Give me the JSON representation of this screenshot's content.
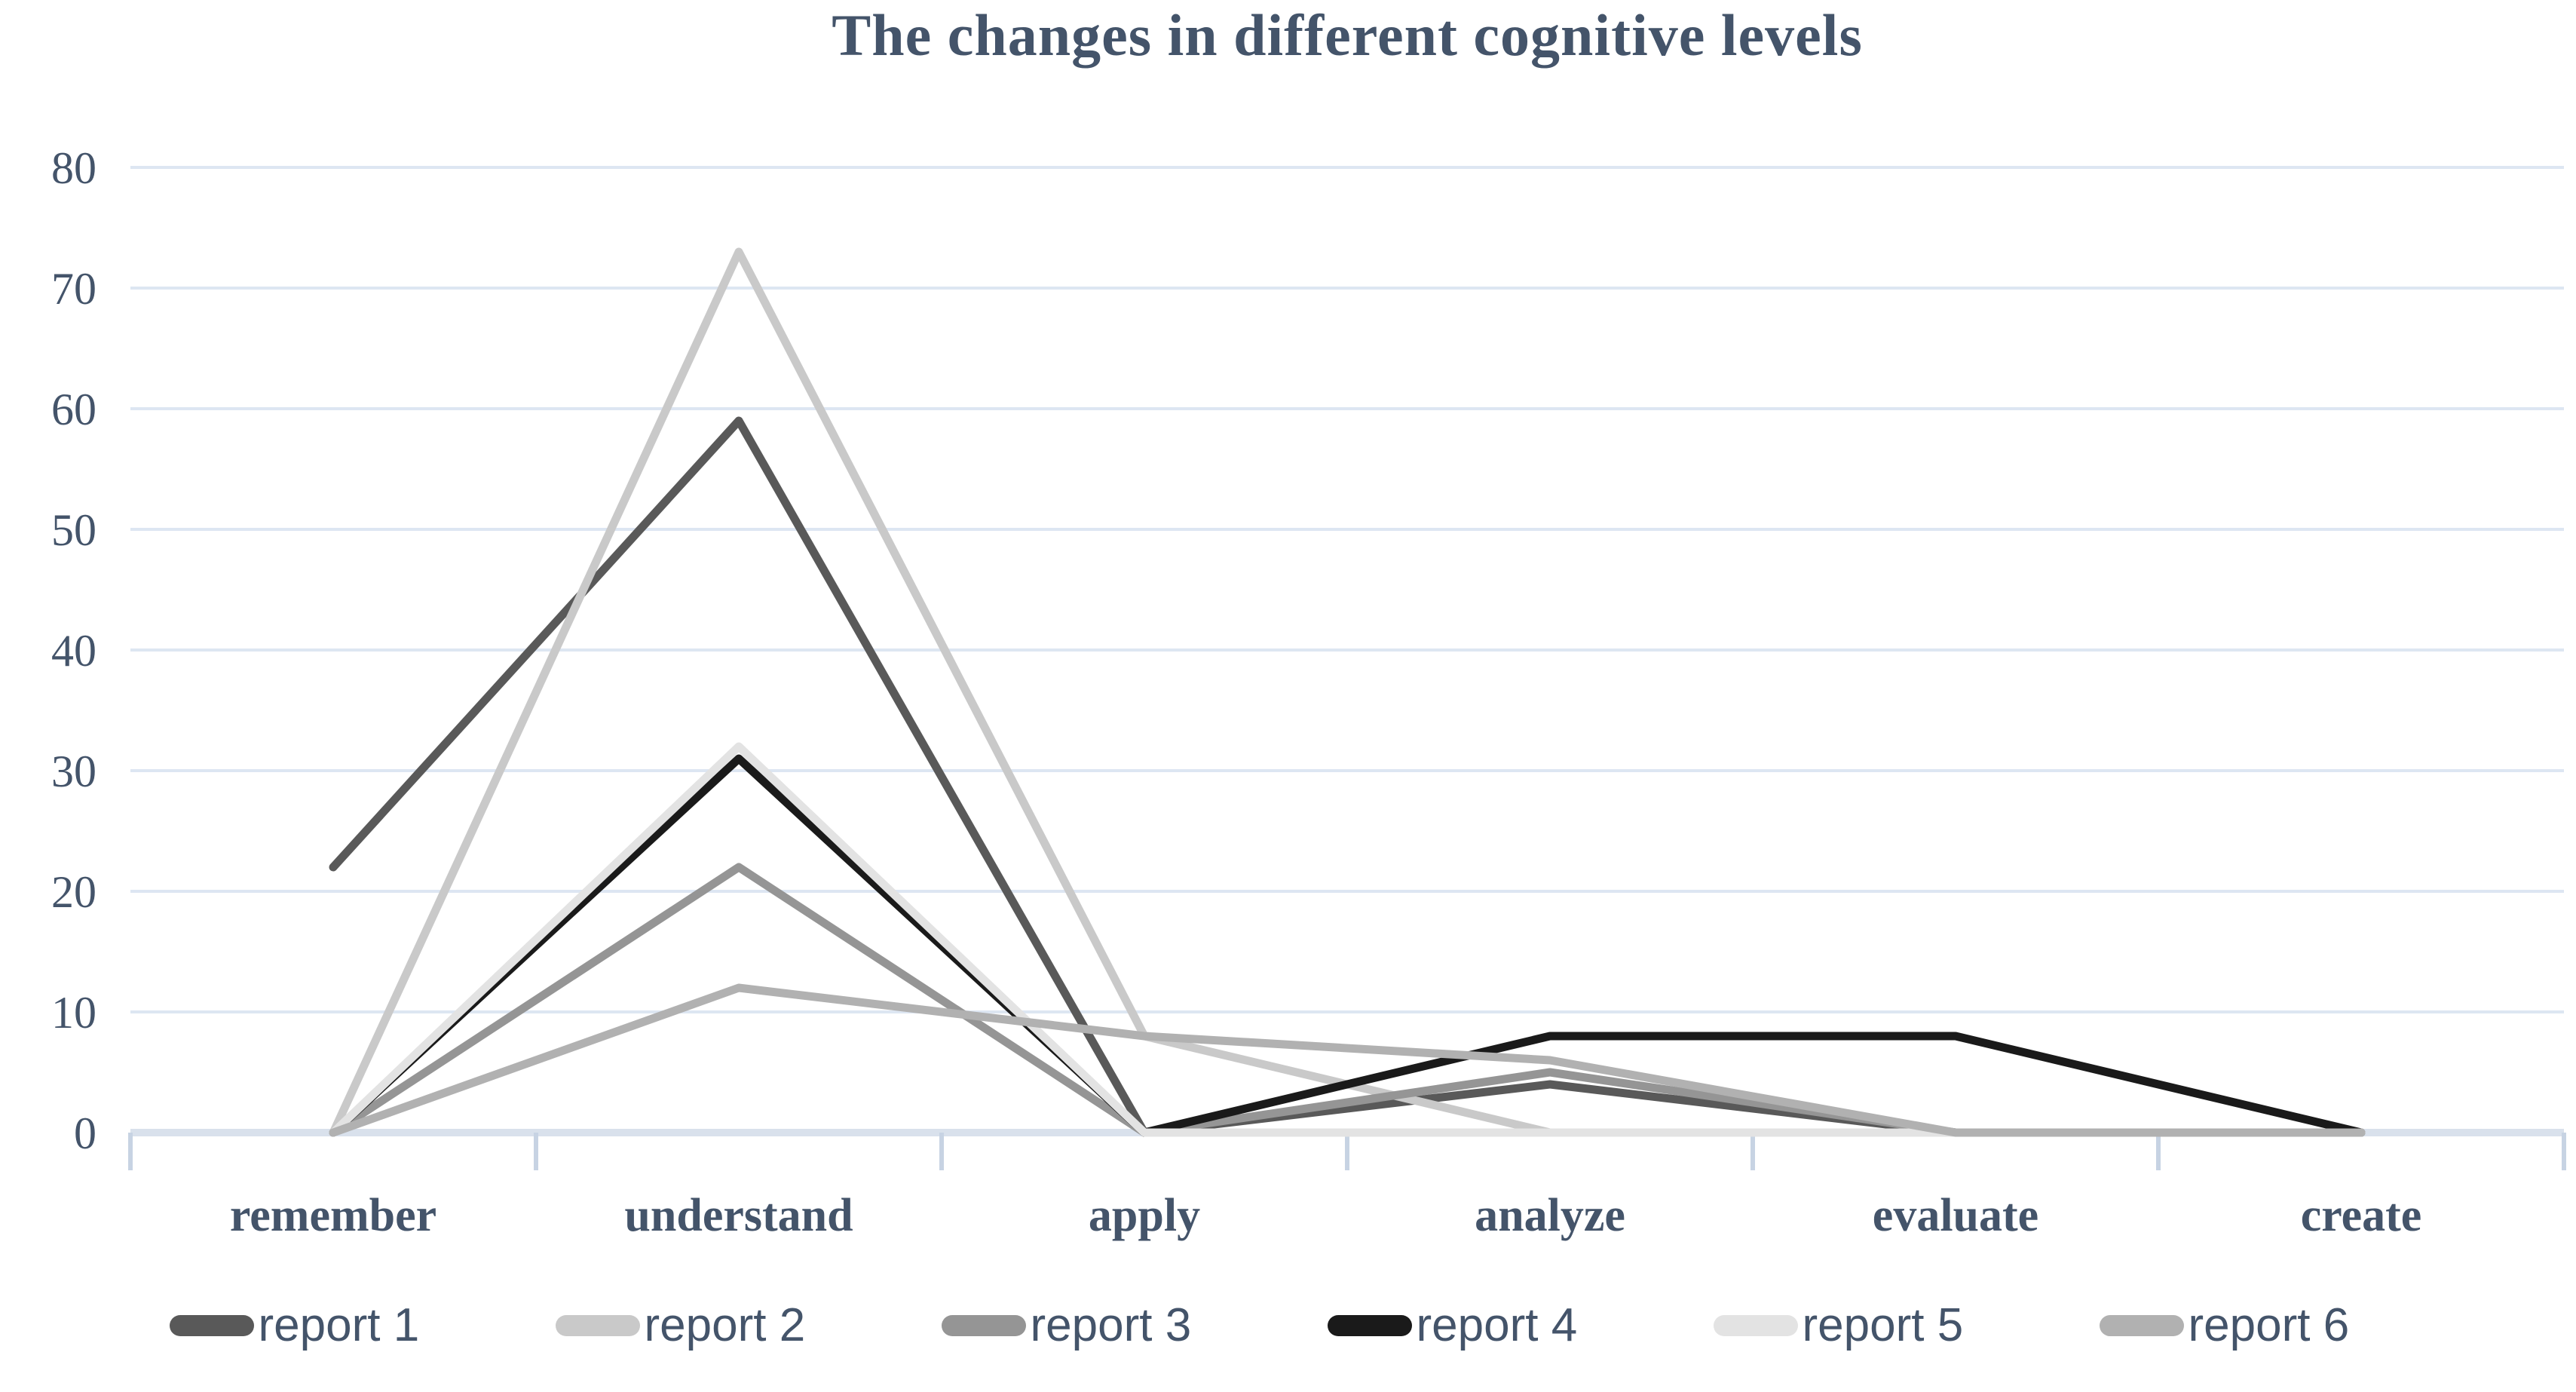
{
  "title": "The changes in different cognitive levels",
  "text_color": "#44546a",
  "background_color": "#ffffff",
  "chart_data": {
    "type": "line",
    "title": "The changes in different cognitive levels",
    "categories": [
      "remember",
      "understand",
      "apply",
      "analyze",
      "evaluate",
      "create"
    ],
    "series": [
      {
        "name": "report 1",
        "color": "#595959",
        "values": [
          22,
          59,
          0,
          4,
          0,
          0
        ]
      },
      {
        "name": "report 2",
        "color": "#c9c9c9",
        "values": [
          0,
          73,
          8,
          0,
          0,
          0
        ]
      },
      {
        "name": "report 3",
        "color": "#959595",
        "values": [
          0,
          22,
          0,
          5,
          0,
          0
        ]
      },
      {
        "name": "report 4",
        "color": "#1a1a1a",
        "values": [
          0,
          31,
          0,
          8,
          8,
          0
        ]
      },
      {
        "name": "report 5",
        "color": "#e3e3e3",
        "values": [
          0,
          32,
          0,
          0,
          0,
          0
        ]
      },
      {
        "name": "report 6",
        "color": "#b1b1b1",
        "values": [
          0,
          12,
          8,
          6,
          0,
          0
        ]
      }
    ],
    "ylim": [
      0,
      80
    ],
    "yticks": [
      0,
      10,
      20,
      30,
      40,
      50,
      60,
      70,
      80
    ],
    "xlabel": "",
    "ylabel": "",
    "grid": "horizontal",
    "gridline_color": "#dde6f2",
    "axis_line_color": "#d9e1ec",
    "tick_color": "#c7d3e3",
    "label_color": "#44546a",
    "legend_position": "bottom"
  }
}
